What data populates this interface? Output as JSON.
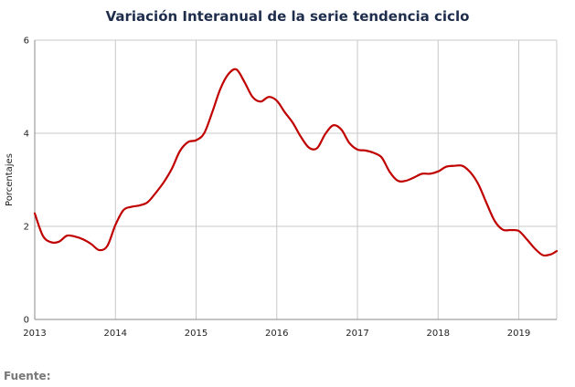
{
  "chart_data": {
    "type": "line",
    "title": "Variación Interanual de la serie tendencia ciclo",
    "xlabel": "",
    "ylabel": "Porcentajes",
    "xlim": [
      2013.0,
      2019.47
    ],
    "ylim": [
      0,
      6
    ],
    "xticks": [
      {
        "value": 2013,
        "label": "2013"
      },
      {
        "value": 2014,
        "label": "2014"
      },
      {
        "value": 2015,
        "label": "2015"
      },
      {
        "value": 2016,
        "label": "2016"
      },
      {
        "value": 2017,
        "label": "2017"
      },
      {
        "value": 2018,
        "label": "2018"
      },
      {
        "value": 2019,
        "label": "2019"
      }
    ],
    "yticks": [
      {
        "value": 0,
        "label": "0"
      },
      {
        "value": 2,
        "label": "2"
      },
      {
        "value": 4,
        "label": "4"
      },
      {
        "value": 6,
        "label": "6"
      }
    ],
    "grid": true,
    "line_color": "#c00000",
    "series": [
      {
        "name": "",
        "x": [
          2013.0,
          2013.1,
          2013.2,
          2013.3,
          2013.4,
          2013.5,
          2013.6,
          2013.7,
          2013.8,
          2013.9,
          2014.0,
          2014.1,
          2014.2,
          2014.3,
          2014.4,
          2014.5,
          2014.6,
          2014.7,
          2014.8,
          2014.9,
          2015.0,
          2015.1,
          2015.2,
          2015.3,
          2015.4,
          2015.5,
          2015.6,
          2015.7,
          2015.8,
          2015.9,
          2016.0,
          2016.1,
          2016.2,
          2016.3,
          2016.4,
          2016.5,
          2016.6,
          2016.7,
          2016.8,
          2016.9,
          2017.0,
          2017.1,
          2017.2,
          2017.3,
          2017.4,
          2017.5,
          2017.6,
          2017.7,
          2017.8,
          2017.9,
          2018.0,
          2018.1,
          2018.2,
          2018.3,
          2018.4,
          2018.5,
          2018.6,
          2018.7,
          2018.8,
          2018.9,
          2019.0,
          2019.1,
          2019.2,
          2019.3,
          2019.4,
          2019.47
        ],
        "y": [
          2.28,
          1.8,
          1.66,
          1.67,
          1.8,
          1.78,
          1.72,
          1.62,
          1.49,
          1.58,
          2.03,
          2.35,
          2.42,
          2.45,
          2.52,
          2.72,
          2.95,
          3.24,
          3.62,
          3.81,
          3.85,
          4.0,
          4.45,
          4.95,
          5.27,
          5.37,
          5.1,
          4.78,
          4.68,
          4.78,
          4.7,
          4.45,
          4.22,
          3.92,
          3.69,
          3.68,
          3.98,
          4.17,
          4.08,
          3.79,
          3.65,
          3.63,
          3.58,
          3.48,
          3.17,
          2.98,
          2.98,
          3.05,
          3.13,
          3.13,
          3.18,
          3.28,
          3.3,
          3.3,
          3.16,
          2.9,
          2.5,
          2.12,
          1.93,
          1.92,
          1.9,
          1.72,
          1.52,
          1.38,
          1.4,
          1.47
        ]
      }
    ]
  },
  "footer": {
    "source_label": "Fuente:"
  }
}
